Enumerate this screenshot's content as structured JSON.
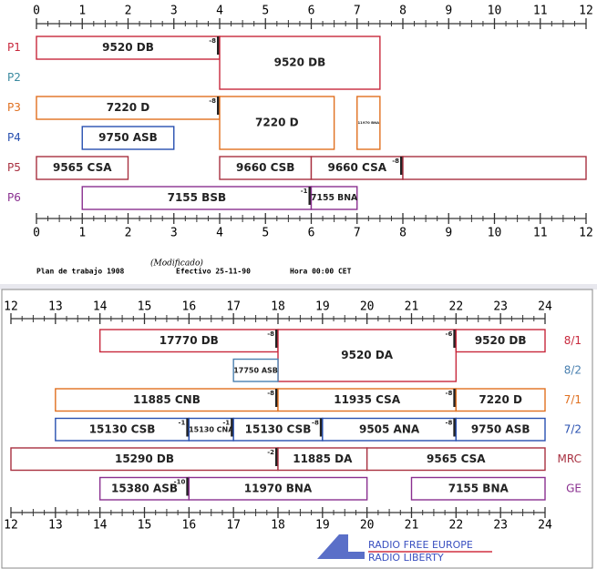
{
  "top": {
    "ticks": [
      0,
      1,
      2,
      3,
      4,
      5,
      6,
      7,
      8,
      9,
      10,
      11,
      12
    ],
    "rows": [
      {
        "label": "P1",
        "color": "#c8283c",
        "blocks": [
          {
            "text": "9520 DB",
            "start": 0,
            "end": 4,
            "note": "-8"
          },
          {
            "text": "9520 DB",
            "start": 4,
            "end": 7.5,
            "span": 2
          }
        ]
      },
      {
        "label": "P2",
        "color": "#3a8aa0",
        "blocks": []
      },
      {
        "label": "P3",
        "color": "#e07020",
        "blocks": [
          {
            "text": "7220 D",
            "start": 0,
            "end": 4,
            "note": "-8"
          },
          {
            "text": "7220 D",
            "start": 4,
            "end": 6.5,
            "span": 2
          },
          {
            "text": "11970 BNA",
            "start": 7,
            "end": 7.5,
            "span": 2
          }
        ]
      },
      {
        "label": "P4",
        "color": "#2850b0",
        "blocks": [
          {
            "text": "9750 ASB",
            "start": 1,
            "end": 3
          }
        ]
      },
      {
        "label": "P5",
        "color": "#a83040",
        "blocks": [
          {
            "text": "9565 CSA",
            "start": 0,
            "end": 2
          },
          {
            "text": "9660 CSB",
            "start": 4,
            "end": 6
          },
          {
            "text": "9660 CSA",
            "start": 6,
            "end": 8,
            "note": "-8"
          },
          {
            "start": 8,
            "end": 12
          }
        ]
      },
      {
        "label": "P6",
        "color": "#8a3090",
        "blocks": [
          {
            "text": "7155 BSB",
            "start": 1,
            "end": 6,
            "note": "-1"
          },
          {
            "text": "7155 BNA",
            "start": 6,
            "end": 7
          }
        ]
      }
    ]
  },
  "footer": {
    "plan": "Plan de trabajo 1908",
    "modified": "(Modificado)",
    "effective": "Efectivo 25-11-90",
    "time": "Hora 00:00 CET"
  },
  "bottom": {
    "ticks": [
      12,
      13,
      14,
      15,
      16,
      17,
      18,
      19,
      20,
      21,
      22,
      23,
      24
    ],
    "rows": [
      {
        "label": "8/1",
        "color": "#c8283c",
        "blocks": [
          {
            "text": "17770 DB",
            "start": 14,
            "end": 18,
            "note": "-8"
          },
          {
            "text": "9520 DA",
            "start": 18,
            "end": 22,
            "span": 2,
            "note": "-6"
          },
          {
            "text": "9520 DB",
            "start": 22,
            "end": 24
          }
        ]
      },
      {
        "label": "8/2",
        "color": "#4a80b0",
        "blocks": [
          {
            "text": "17750 ASB",
            "start": 17,
            "end": 18
          }
        ]
      },
      {
        "label": "7/1",
        "color": "#e07020",
        "blocks": [
          {
            "text": "11885 CNB",
            "start": 13,
            "end": 18,
            "note": "-8"
          },
          {
            "text": "11935 CSA",
            "start": 18,
            "end": 22,
            "note": "-8"
          },
          {
            "text": "7220 D",
            "start": 22,
            "end": 24
          }
        ]
      },
      {
        "label": "7/2",
        "color": "#2850b0",
        "blocks": [
          {
            "text": "15130 CSB",
            "start": 13,
            "end": 16,
            "note": "-1"
          },
          {
            "text": "15130 CNA",
            "start": 16,
            "end": 17,
            "note": "-1"
          },
          {
            "text": "15130 CSB",
            "start": 17,
            "end": 19,
            "note": "-8"
          },
          {
            "text": "9505 ANA",
            "start": 19,
            "end": 22,
            "note": "-8"
          },
          {
            "text": "9750 ASB",
            "start": 22,
            "end": 24
          }
        ]
      },
      {
        "label": "MRC",
        "color": "#a83040",
        "blocks": [
          {
            "text": "15290 DB",
            "start": 12,
            "end": 18,
            "note": "-2"
          },
          {
            "text": "11885 DA",
            "start": 18,
            "end": 20
          },
          {
            "text": "9565 CSA",
            "start": 20,
            "end": 24
          }
        ]
      },
      {
        "label": "GE",
        "color": "#8a3090",
        "blocks": [
          {
            "text": "15380 ASB",
            "start": 14,
            "end": 16,
            "note": "-10"
          },
          {
            "text": "11970 BNA",
            "start": 16,
            "end": 20
          },
          {
            "text": "7155 BNA",
            "start": 21,
            "end": 24
          }
        ]
      }
    ]
  },
  "logo": {
    "line1": "RADIO FREE EUROPE",
    "line2": "RADIO LIBERTY"
  }
}
